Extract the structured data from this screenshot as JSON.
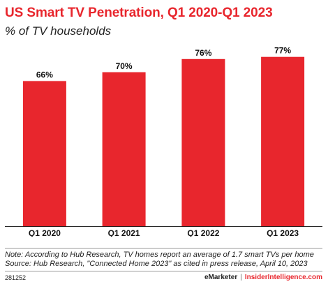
{
  "chart_data": {
    "type": "bar",
    "title": "US Smart TV Penetration, Q1 2020-Q1 2023",
    "subtitle": "% of TV households",
    "categories": [
      "Q1 2020",
      "Q1 2021",
      "Q1 2022",
      "Q1 2023"
    ],
    "values": [
      66,
      70,
      76,
      77
    ],
    "value_labels": [
      "66%",
      "70%",
      "76%",
      "77%"
    ],
    "ylim": [
      0,
      100
    ],
    "grid": false,
    "bar_color": "#e8262d"
  },
  "note_lines": [
    "Note: According to Hub Research, TV homes report an average of 1.7 smart TVs per home",
    "Source: Hub Research, \"Connected Home 2023\" as cited in press release, April 10, 2023"
  ],
  "footer": {
    "chart_id": "281252",
    "brand": "eMarketer",
    "separator": "|",
    "partner": "InsiderIntelligence.com"
  },
  "colors": {
    "accent": "#e8262d",
    "text": "#222222"
  }
}
